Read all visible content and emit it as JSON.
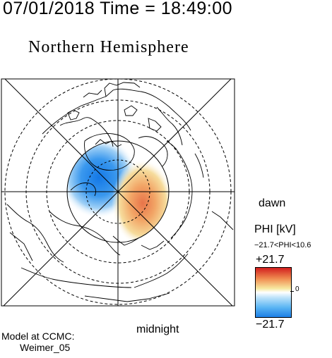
{
  "header": {
    "datetime": "07/01/2018 Time = 18:49:00"
  },
  "title": "Northern Hemisphere",
  "labels": {
    "dawn": "dawn",
    "midnight": "midnight"
  },
  "colorbar": {
    "quantity": "PHI [kV]",
    "range_text": "−21.7<PHI<10.6",
    "max_label": "+21.7",
    "min_label": "−21.7",
    "zero_label": "0",
    "max": 21.7,
    "min": -21.7,
    "observed_min": -21.7,
    "observed_max": 10.6,
    "colors": {
      "positive": "#d21e1e",
      "negative": "#1d7fe6",
      "zero": "#ffffff"
    }
  },
  "credit": {
    "line1": "Model at CCMC:",
    "line2": "Weimer_05"
  },
  "colors": {
    "map_lines": "#000000",
    "background": "#ffffff"
  }
}
